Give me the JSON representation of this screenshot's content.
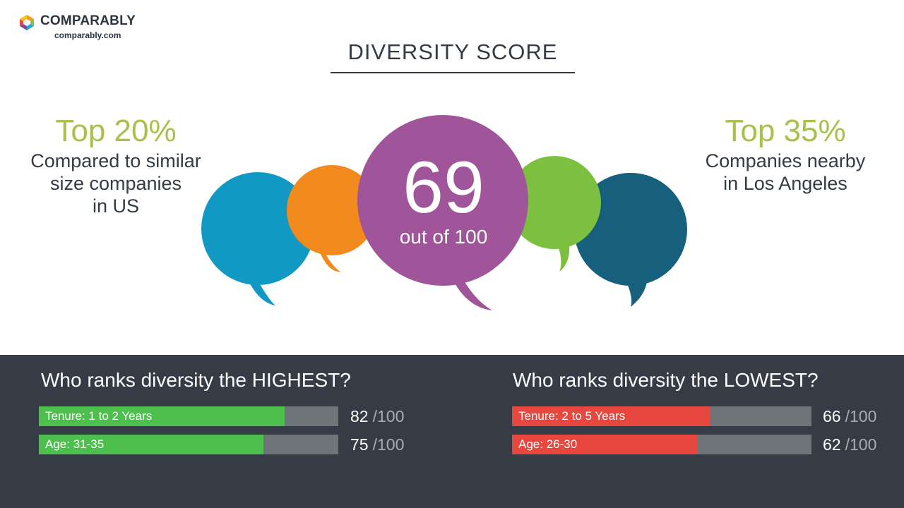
{
  "brand": {
    "name": "COMPARABLY",
    "url": "comparably.com"
  },
  "title": "DIVERSITY SCORE",
  "left_stat": {
    "percent": "Top 20%",
    "line1": "Compared to similar",
    "line2": "size companies",
    "line3": "in US"
  },
  "right_stat": {
    "percent": "Top 35%",
    "line1": "Companies nearby",
    "line2": "in Los Angeles"
  },
  "score": {
    "value": "69",
    "subtitle": "out of 100"
  },
  "highest": {
    "heading": "Who ranks diversity the HIGHEST?",
    "rows": [
      {
        "label": "Tenure: 1 to 2 Years",
        "score": "82",
        "denominator": "/100",
        "value": 82
      },
      {
        "label": "Age: 31-35",
        "score": "75",
        "denominator": "/100",
        "value": 75
      }
    ]
  },
  "lowest": {
    "heading": "Who ranks diversity the LOWEST?",
    "rows": [
      {
        "label": "Tenure: 2 to 5 Years",
        "score": "66",
        "denominator": "/100",
        "value": 66
      },
      {
        "label": "Age: 26-30",
        "score": "62",
        "denominator": "/100",
        "value": 62
      }
    ]
  },
  "colors": {
    "accent_green_text": "#a7c14a",
    "bubble_blue": "#1198c3",
    "bubble_orange": "#f28a1d",
    "bubble_purple": "#a0559a",
    "bubble_green": "#7dc040",
    "bubble_teal": "#165f7d",
    "bar_high": "#4cbf4c",
    "bar_low": "#e8473f",
    "bar_track": "#6f7479",
    "band_bg": "#353c45"
  }
}
